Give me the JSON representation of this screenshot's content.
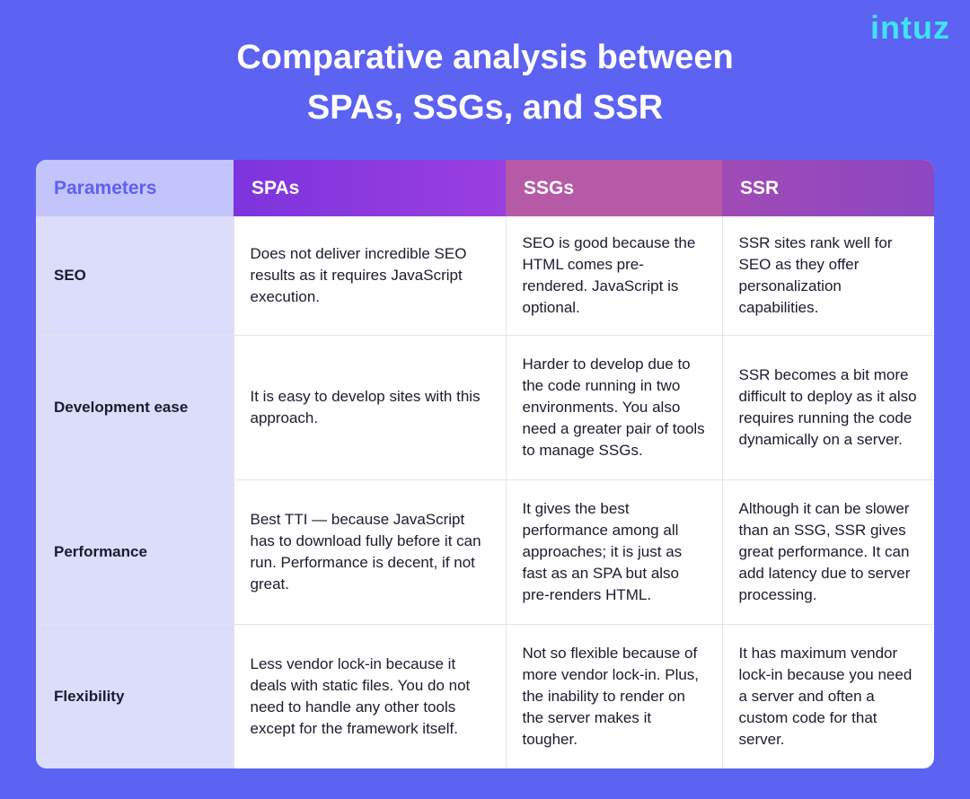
{
  "header": {
    "title": [
      "Comparative analysis between",
      "SPAs, SSGs, and SSR"
    ],
    "logo": "intuz"
  },
  "table": {
    "columns": [
      "Parameters",
      "SPAs",
      "SSGs",
      "SSR"
    ],
    "rows": [
      [
        "SEO",
        "Does not deliver incredible SEO results as it requires JavaScript execution.",
        "SEO is good because the HTML comes pre-rendered. JavaScript is optional.",
        "SSR sites rank well for SEO as they offer personalization capabilities."
      ],
      [
        "Development ease",
        "It is easy to develop sites with this approach.",
        "Harder to develop due to the code running in two environments. You also need a greater pair of tools to manage SSGs.",
        "SSR becomes a bit more difficult to deploy as it also requires running the code dynamically on a server."
      ],
      [
        "Performance",
        "Best TTI — because JavaScript has to download fully before it can run. Performance is decent, if not great.",
        "It gives the best performance among all approaches; it is just as fast as an SPA but also pre-renders HTML.",
        "Although it can be slower than an SSG, SSR gives great performance. It can add latency due to server processing."
      ],
      [
        "Flexibility",
        "Less vendor lock-in because it deals with static files. You do not need to handle any other tools except for the framework itself.",
        "Not so flexible because of more vendor lock-in. Plus, the inability to render on the server makes it tougher.",
        "It has maximum vendor lock-in because you need a server and often a custom code for that server."
      ]
    ]
  }
}
